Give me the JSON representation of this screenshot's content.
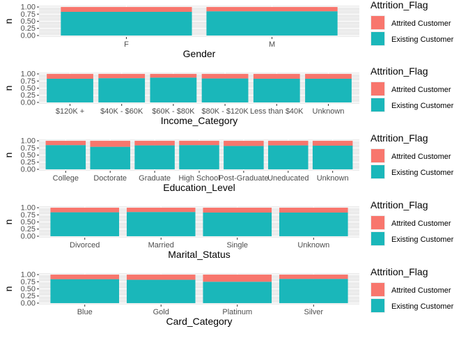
{
  "colors": {
    "attrited": "#F8766D",
    "existing": "#1AB7BA",
    "panel_bg": "#EBEBEB",
    "grid_major": "#FFFFFF",
    "grid_minor": "#F5F5F5",
    "axis_text": "#4D4D4D",
    "title_text": "#000000"
  },
  "chart_data": [
    {
      "type": "bar",
      "stacked": "proportion",
      "xlabel": "Gender",
      "ylabel": "n",
      "ylim": [
        0,
        1
      ],
      "yticks": [
        "0.00",
        "0.25",
        "0.50",
        "0.75",
        "1.00"
      ],
      "categories": [
        "F",
        "M"
      ],
      "series": [
        {
          "name": "Attrited Customer",
          "values": [
            0.17,
            0.15
          ]
        },
        {
          "name": "Existing Customer",
          "values": [
            0.83,
            0.85
          ]
        }
      ],
      "legend": {
        "title": "Attrition_Flag",
        "position": "right"
      },
      "grid": true
    },
    {
      "type": "bar",
      "stacked": "proportion",
      "xlabel": "Income_Category",
      "ylabel": "n",
      "ylim": [
        0,
        1
      ],
      "yticks": [
        "0.00",
        "0.25",
        "0.50",
        "0.75",
        "1.00"
      ],
      "categories": [
        "$120K +",
        "$40K - $60K",
        "$60K - $80K",
        "$80K - $120K",
        "Less than $40K",
        "Unknown"
      ],
      "series": [
        {
          "name": "Attrited Customer",
          "values": [
            0.17,
            0.15,
            0.13,
            0.16,
            0.17,
            0.17
          ]
        },
        {
          "name": "Existing Customer",
          "values": [
            0.83,
            0.85,
            0.87,
            0.84,
            0.83,
            0.83
          ]
        }
      ],
      "legend": {
        "title": "Attrition_Flag",
        "position": "right"
      },
      "grid": true
    },
    {
      "type": "bar",
      "stacked": "proportion",
      "xlabel": "Education_Level",
      "ylabel": "n",
      "ylim": [
        0,
        1
      ],
      "yticks": [
        "0.00",
        "0.25",
        "0.50",
        "0.75",
        "1.00"
      ],
      "categories": [
        "College",
        "Doctorate",
        "Graduate",
        "High School",
        "Post-Graduate",
        "Uneducated",
        "Unknown"
      ],
      "series": [
        {
          "name": "Attrited Customer",
          "values": [
            0.15,
            0.21,
            0.16,
            0.15,
            0.18,
            0.16,
            0.17
          ]
        },
        {
          "name": "Existing Customer",
          "values": [
            0.85,
            0.79,
            0.84,
            0.85,
            0.82,
            0.84,
            0.83
          ]
        }
      ],
      "legend": {
        "title": "Attrition_Flag",
        "position": "right"
      },
      "grid": true
    },
    {
      "type": "bar",
      "stacked": "proportion",
      "xlabel": "Marital_Status",
      "ylabel": "n",
      "ylim": [
        0,
        1
      ],
      "yticks": [
        "0.00",
        "0.25",
        "0.50",
        "0.75",
        "1.00"
      ],
      "categories": [
        "Divorced",
        "Married",
        "Single",
        "Unknown"
      ],
      "series": [
        {
          "name": "Attrited Customer",
          "values": [
            0.16,
            0.15,
            0.17,
            0.17
          ]
        },
        {
          "name": "Existing Customer",
          "values": [
            0.84,
            0.85,
            0.83,
            0.83
          ]
        }
      ],
      "legend": {
        "title": "Attrition_Flag",
        "position": "right"
      },
      "grid": true
    },
    {
      "type": "bar",
      "stacked": "proportion",
      "xlabel": "Card_Category",
      "ylabel": "n",
      "ylim": [
        0,
        1
      ],
      "yticks": [
        "0.00",
        "0.25",
        "0.50",
        "0.75",
        "1.00"
      ],
      "categories": [
        "Blue",
        "Gold",
        "Platinum",
        "Silver"
      ],
      "series": [
        {
          "name": "Attrited Customer",
          "values": [
            0.16,
            0.18,
            0.25,
            0.15
          ]
        },
        {
          "name": "Existing Customer",
          "values": [
            0.84,
            0.82,
            0.75,
            0.85
          ]
        }
      ],
      "legend": {
        "title": "Attrition_Flag",
        "position": "right"
      },
      "grid": true
    }
  ]
}
